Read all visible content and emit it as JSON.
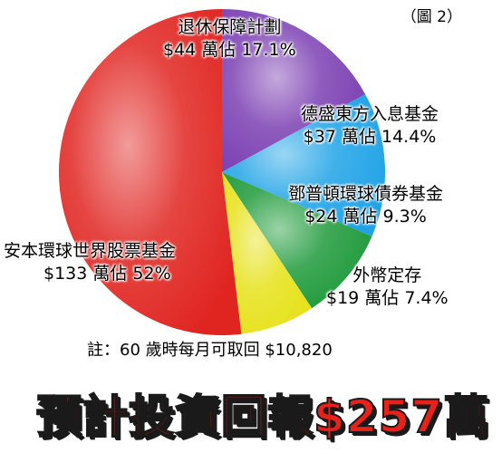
{
  "figure_label": "（圖 2）",
  "chart_data": {
    "type": "pie",
    "title": "",
    "slices": [
      {
        "name": "安本環球世界股票基金",
        "value_text": "$133 萬佔 52%",
        "amount": 133,
        "percent": 52,
        "color": "#e02420"
      },
      {
        "name": "退休保障計劃",
        "value_text": "$44 萬佔 17.1%",
        "amount": 44,
        "percent": 17.1,
        "color": "#7b3fb2"
      },
      {
        "name": "德盛東方入息基金",
        "value_text": "$37 萬佔 14.4%",
        "amount": 37,
        "percent": 14.4,
        "color": "#1fa3e6"
      },
      {
        "name": "鄧普頓環球債券基金",
        "value_text": "$24 萬佔 9.3%",
        "amount": 24,
        "percent": 9.3,
        "color": "#1e9a3a"
      },
      {
        "name": "外幣定存",
        "value_text": "$19 萬佔 7.4%",
        "amount": 19,
        "percent": 7.4,
        "color": "#e6e21a"
      }
    ]
  },
  "note": "註：60 歲時每月可取回 $10,820",
  "headline": "預計投資回報$257萬"
}
